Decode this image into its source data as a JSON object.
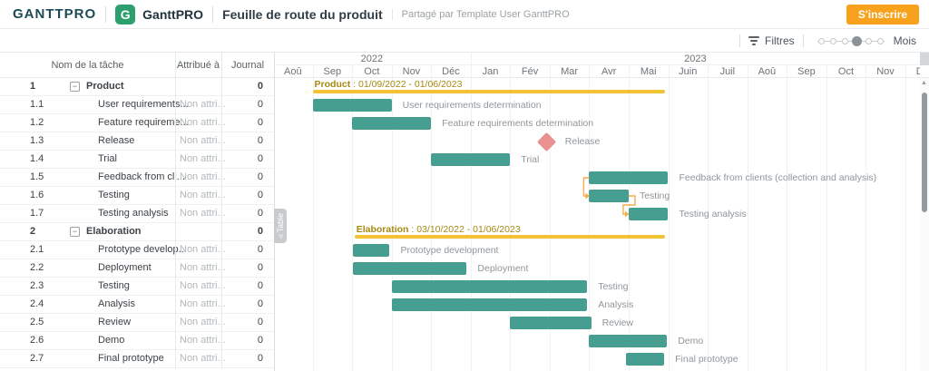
{
  "header": {
    "logo_text": "GANTTPRO",
    "app_icon": "G",
    "app_name": "GanttPRO",
    "title": "Feuille de route du produit",
    "shared_by": "Partagé par Template User GanttPRO",
    "signup_label": "S'inscrire"
  },
  "toolbar": {
    "filters_label": "Filtres",
    "zoom_label": "Mois",
    "zoom_steps": 6,
    "zoom_active_step": 4
  },
  "side_tab": {
    "label": "Table",
    "icon": "triangle-left"
  },
  "table": {
    "columns": [
      "Nom de la tâche",
      "Attribué à",
      "Journal"
    ]
  },
  "timeline": {
    "years": [
      {
        "label": "2022",
        "months": [
          "Aoû",
          "Sep",
          "Oct",
          "Nov",
          "Déc"
        ]
      },
      {
        "label": "2023",
        "months": [
          "Jan",
          "Fév",
          "Mar",
          "Avr",
          "Mai",
          "Juin",
          "Juil",
          "Aoû",
          "Sep",
          "Oct",
          "Nov",
          "Déc"
        ]
      }
    ]
  },
  "tasks": [
    {
      "num": "1",
      "name": "Product",
      "assigned": "",
      "journal": "0",
      "type": "summary",
      "dates": "01/09/2022 - 01/06/2023",
      "bar": {
        "start": 1,
        "end": 9.92
      }
    },
    {
      "num": "1.1",
      "name": "User requirements...",
      "assigned": "Non attri...",
      "journal": "0",
      "type": "task",
      "label": "User requirements determination",
      "bar": {
        "start": 1,
        "end": 3
      }
    },
    {
      "num": "1.2",
      "name": "Feature requireme...",
      "assigned": "Non attri...",
      "journal": "0",
      "type": "task",
      "label": "Feature requirements determination",
      "bar": {
        "start": 2,
        "end": 4
      }
    },
    {
      "num": "1.3",
      "name": "Release",
      "assigned": "Non attri...",
      "journal": "0",
      "type": "milestone",
      "label": "Release",
      "bar": {
        "start": 6.93,
        "end": 6.93
      }
    },
    {
      "num": "1.4",
      "name": "Trial",
      "assigned": "Non attri...",
      "journal": "0",
      "type": "task",
      "label": "Trial",
      "bar": {
        "start": 4,
        "end": 6
      }
    },
    {
      "num": "1.5",
      "name": "Feedback from cli...",
      "assigned": "Non attri...",
      "journal": "0",
      "type": "task",
      "label": "Feedback from clients (collection and analysis)",
      "bar": {
        "start": 8,
        "end": 10
      }
    },
    {
      "num": "1.6",
      "name": "Testing",
      "assigned": "Non attri...",
      "journal": "0",
      "type": "task",
      "label": "Testing",
      "bar": {
        "start": 8,
        "end": 9
      }
    },
    {
      "num": "1.7",
      "name": "Testing analysis",
      "assigned": "Non attri...",
      "journal": "0",
      "type": "task",
      "label": "Testing analysis",
      "bar": {
        "start": 9,
        "end": 10
      }
    },
    {
      "num": "2",
      "name": "Elaboration",
      "assigned": "",
      "journal": "0",
      "type": "summary",
      "dates": "03/10/2022 - 01/06/2023",
      "bar": {
        "start": 2.06,
        "end": 9.92
      }
    },
    {
      "num": "2.1",
      "name": "Prototype develop...",
      "assigned": "Non attri...",
      "journal": "0",
      "type": "task",
      "label": "Prototype development",
      "bar": {
        "start": 2.03,
        "end": 2.95
      }
    },
    {
      "num": "2.2",
      "name": "Deployment",
      "assigned": "Non attri...",
      "journal": "0",
      "type": "task",
      "label": "Deployment",
      "bar": {
        "start": 2.03,
        "end": 4.9
      }
    },
    {
      "num": "2.3",
      "name": "Testing",
      "assigned": "Non attri...",
      "journal": "0",
      "type": "task",
      "label": "Testing",
      "bar": {
        "start": 3,
        "end": 7.95
      }
    },
    {
      "num": "2.4",
      "name": "Analysis",
      "assigned": "Non attri...",
      "journal": "0",
      "type": "task",
      "label": "Analysis",
      "bar": {
        "start": 3,
        "end": 7.95
      }
    },
    {
      "num": "2.5",
      "name": "Review",
      "assigned": "Non attri...",
      "journal": "0",
      "type": "task",
      "label": "Review",
      "bar": {
        "start": 6,
        "end": 8.05
      }
    },
    {
      "num": "2.6",
      "name": "Demo",
      "assigned": "Non attri...",
      "journal": "0",
      "type": "task",
      "label": "Demo",
      "bar": {
        "start": 8,
        "end": 9.97
      }
    },
    {
      "num": "2.7",
      "name": "Final prototype",
      "assigned": "Non attri...",
      "journal": "0",
      "type": "task",
      "label": "Final prototype",
      "bar": {
        "start": 8.93,
        "end": 9.9
      }
    }
  ],
  "dependencies": [
    {
      "from": "1.5",
      "to": "1.6"
    },
    {
      "from": "1.6",
      "to": "1.7"
    }
  ],
  "colors": {
    "task_bar": "#459e90",
    "summary_bar": "#f3c235",
    "summary_text": "#a8890f",
    "milestone": "#e9918f",
    "connector": "#f2ad4e",
    "accent_orange": "#f8a11c",
    "logo_dark": "#1d4a57",
    "logo_green": "#2d9f6c"
  }
}
